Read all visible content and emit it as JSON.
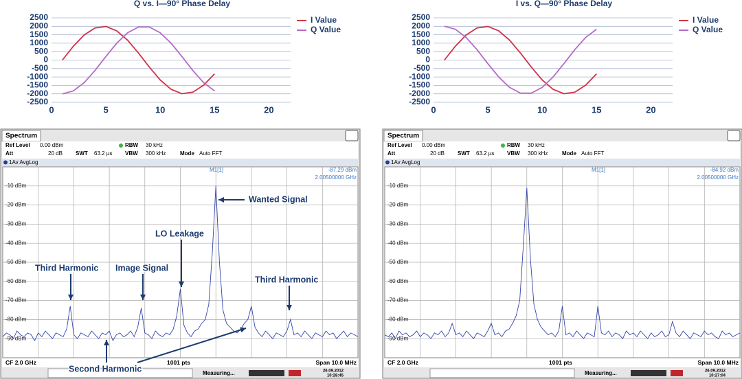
{
  "chart_data": [
    {
      "type": "line",
      "title": "Q vs. I—90° Phase Delay",
      "x": [
        1,
        2,
        3,
        4,
        5,
        6,
        7,
        8,
        9,
        10,
        11,
        12,
        13,
        14,
        15
      ],
      "series": [
        {
          "name": "I Value",
          "color": "#d0334a",
          "values": [
            0,
            813,
            1486,
            1902,
            1989,
            1732,
            1176,
            416,
            -416,
            -1176,
            -1732,
            -1989,
            -1902,
            -1486,
            -813
          ]
        },
        {
          "name": "Q Value",
          "color": "#b36bc8",
          "values": [
            -2000,
            -1827,
            -1338,
            -618,
            209,
            1000,
            1618,
            1956,
            1956,
            1618,
            1000,
            209,
            -618,
            -1338,
            -1827
          ]
        }
      ],
      "xlim": [
        0,
        22
      ],
      "ylim": [
        -2500,
        2500
      ],
      "xticks": [
        0,
        5,
        10,
        15,
        20
      ],
      "yticks": [
        -2500,
        -2000,
        -1500,
        -1000,
        -500,
        0,
        500,
        1000,
        1500,
        2000,
        2500
      ],
      "grid": true,
      "legend": "right"
    },
    {
      "type": "line",
      "title": "I vs. Q—90° Phase Delay",
      "x": [
        1,
        2,
        3,
        4,
        5,
        6,
        7,
        8,
        9,
        10,
        11,
        12,
        13,
        14,
        15
      ],
      "series": [
        {
          "name": "I Value",
          "color": "#d0334a",
          "values": [
            0,
            813,
            1486,
            1902,
            1989,
            1732,
            1176,
            416,
            -416,
            -1176,
            -1732,
            -1989,
            -1902,
            -1486,
            -813
          ]
        },
        {
          "name": "Q Value",
          "color": "#b36bc8",
          "values": [
            2000,
            1827,
            1338,
            618,
            -209,
            -1000,
            -1618,
            -1956,
            -1956,
            -1618,
            -1000,
            -209,
            618,
            1338,
            1827
          ]
        }
      ],
      "xlim": [
        0,
        22
      ],
      "ylim": [
        -2500,
        2500
      ],
      "xticks": [
        0,
        5,
        10,
        15,
        20
      ],
      "yticks": [
        -2500,
        -2000,
        -1500,
        -1000,
        -500,
        0,
        500,
        1000,
        1500,
        2000,
        2500
      ],
      "grid": true,
      "legend": "right"
    },
    {
      "type": "spectrum",
      "title": "Spectrum",
      "header": [
        [
          "Ref Level",
          "0.00 dBm"
        ],
        [
          "RBW",
          "30 kHz"
        ],
        [
          "Att",
          "20 dB"
        ],
        [
          "SWT",
          "63.2 µs"
        ],
        [
          "VBW",
          "300 kHz"
        ],
        [
          "Mode",
          "Auto FFT"
        ]
      ],
      "trace_label": "1Av AvgLog",
      "marker": {
        "name": "M1[1]",
        "level": "-87.29 dBm",
        "freq": "2.00500000 GHz"
      },
      "color": "#3344aa",
      "values": [
        -89,
        -87,
        -88,
        -90,
        -86,
        -88,
        -89,
        -87,
        -88,
        -91,
        -87,
        -89,
        -86,
        -88,
        -90,
        -87,
        -88,
        -89,
        -85,
        -73,
        -88,
        -90,
        -87,
        -88,
        -89,
        -86,
        -88,
        -90,
        -87,
        -88,
        -86,
        -91,
        -88,
        -87,
        -89,
        -88,
        -86,
        -89,
        -84,
        -74,
        -87,
        -88,
        -90,
        -86,
        -88,
        -89,
        -87,
        -88,
        -85,
        -78,
        -64,
        -83,
        -87,
        -89,
        -86,
        -85,
        -82,
        -80,
        -72,
        -45,
        -10,
        -50,
        -75,
        -82,
        -84,
        -86,
        -87,
        -85,
        -82,
        -80,
        -73,
        -84,
        -87,
        -89,
        -86,
        -88,
        -90,
        -87,
        -88,
        -89,
        -86,
        -80,
        -88,
        -87,
        -89,
        -86,
        -88,
        -90,
        -87,
        -88,
        -89,
        -86,
        -88,
        -87,
        -90,
        -88,
        -86,
        -89,
        -87,
        -88,
        -89
      ],
      "ylim": [
        -100,
        0
      ],
      "yticks": [
        {
          "value": -10,
          "label": "-10 dBm"
        },
        {
          "value": -20,
          "label": "-20 dBm"
        },
        {
          "value": -30,
          "label": "-30 dBm"
        },
        {
          "value": -40,
          "label": "-40 dBm"
        },
        {
          "value": -50,
          "label": "-50 dBm"
        },
        {
          "value": -60,
          "label": "-60 dBm"
        },
        {
          "value": -70,
          "label": "-70 dBm"
        },
        {
          "value": -80,
          "label": "-80 dBm"
        },
        {
          "value": -90,
          "label": "-90 dBm"
        }
      ],
      "grid": true,
      "annotations": [
        "Wanted Signal",
        "LO Leakage",
        "Third Harmonic",
        "Image Signal",
        "Third Harmonic",
        "Second Harmonic"
      ],
      "footer": [
        "CF 2.0 GHz",
        "1001 pts",
        "Span 10.0 MHz"
      ],
      "status": "Measuring...",
      "date": "26.09.2012",
      "time": "10:28:45"
    },
    {
      "type": "spectrum",
      "title": "Spectrum",
      "header": [
        [
          "Ref Level",
          "0.00 dBm"
        ],
        [
          "RBW",
          "30 kHz"
        ],
        [
          "Att",
          "20 dB"
        ],
        [
          "SWT",
          "63.2 µs"
        ],
        [
          "VBW",
          "300 kHz"
        ],
        [
          "Mode",
          "Auto FFT"
        ]
      ],
      "trace_label": "1Av AvgLog",
      "marker": {
        "name": "M1[1]",
        "level": "-84.92 dBm",
        "freq": "2.00500000 GHz"
      },
      "color": "#3344aa",
      "values": [
        -88,
        -89,
        -87,
        -90,
        -86,
        -88,
        -87,
        -89,
        -88,
        -86,
        -89,
        -87,
        -88,
        -90,
        -87,
        -88,
        -86,
        -89,
        -87,
        -82,
        -88,
        -87,
        -89,
        -86,
        -88,
        -90,
        -87,
        -88,
        -89,
        -86,
        -82,
        -88,
        -87,
        -89,
        -86,
        -85,
        -82,
        -78,
        -70,
        -42,
        -11,
        -48,
        -72,
        -80,
        -84,
        -86,
        -88,
        -87,
        -89,
        -86,
        -73,
        -88,
        -87,
        -89,
        -86,
        -88,
        -90,
        -87,
        -88,
        -89,
        -73,
        -87,
        -88,
        -86,
        -89,
        -87,
        -88,
        -90,
        -86,
        -88,
        -87,
        -89,
        -86,
        -88,
        -90,
        -87,
        -89,
        -88,
        -86,
        -89,
        -88,
        -81,
        -87,
        -89,
        -86,
        -88,
        -90,
        -87,
        -88,
        -89,
        -86,
        -88,
        -87,
        -89,
        -90,
        -86,
        -88,
        -87,
        -89,
        -88,
        -87
      ],
      "ylim": [
        -100,
        0
      ],
      "yticks": [
        {
          "value": -10,
          "label": "-10 dBm"
        },
        {
          "value": -20,
          "label": "-20 dBm"
        },
        {
          "value": -30,
          "label": "-30 dBm"
        },
        {
          "value": -40,
          "label": "-40 dBm"
        },
        {
          "value": -50,
          "label": "-50 dBm"
        },
        {
          "value": -60,
          "label": "-60 dBm"
        },
        {
          "value": -70,
          "label": "-70 dBm"
        },
        {
          "value": -80,
          "label": "-80 dBm"
        },
        {
          "value": -90,
          "label": "-90 dBm"
        }
      ],
      "grid": true,
      "footer": [
        "CF 2.0 GHz",
        "1001 pts",
        "Span 10.0 MHz"
      ],
      "status": "Measuring...",
      "date": "26.09.2012",
      "time": "10:27:04"
    }
  ]
}
